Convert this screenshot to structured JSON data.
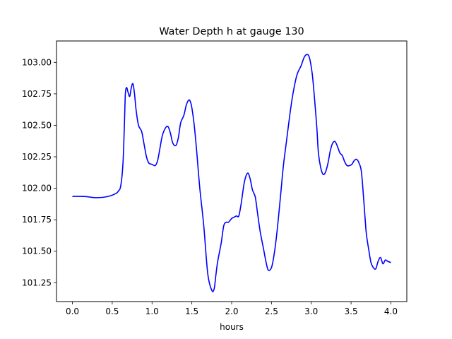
{
  "chart_data": {
    "type": "line",
    "title": "Water Depth h at gauge 130",
    "xlabel": "hours",
    "ylabel": "",
    "xlim": [
      -0.2,
      4.2
    ],
    "ylim": [
      101.1,
      103.17
    ],
    "xticks": [
      0.0,
      0.5,
      1.0,
      1.5,
      2.0,
      2.5,
      3.0,
      3.5,
      4.0
    ],
    "xtick_labels": [
      "0.0",
      "0.5",
      "1.0",
      "1.5",
      "2.0",
      "2.5",
      "3.0",
      "3.5",
      "4.0"
    ],
    "yticks": [
      101.25,
      101.5,
      101.75,
      102.0,
      102.25,
      102.5,
      102.75,
      103.0
    ],
    "ytick_labels": [
      "101.25",
      "101.50",
      "101.75",
      "102.00",
      "102.25",
      "102.50",
      "102.75",
      "103.00"
    ],
    "grid": false,
    "series": [
      {
        "color": "#0000ff",
        "x": [
          0.0,
          0.15,
          0.3,
          0.45,
          0.55,
          0.58,
          0.6,
          0.62,
          0.635,
          0.645,
          0.655,
          0.665,
          0.68,
          0.7,
          0.72,
          0.74,
          0.76,
          0.78,
          0.8,
          0.83,
          0.87,
          0.9,
          0.93,
          0.96,
          1.0,
          1.04,
          1.07,
          1.1,
          1.13,
          1.17,
          1.2,
          1.23,
          1.26,
          1.3,
          1.33,
          1.36,
          1.4,
          1.43,
          1.46,
          1.48,
          1.5,
          1.53,
          1.56,
          1.6,
          1.65,
          1.7,
          1.75,
          1.78,
          1.8,
          1.82,
          1.84,
          1.87,
          1.9,
          1.93,
          1.96,
          2.0,
          2.03,
          2.06,
          2.09,
          2.12,
          2.16,
          2.2,
          2.23,
          2.26,
          2.28,
          2.3,
          2.33,
          2.36,
          2.4,
          2.43,
          2.46,
          2.5,
          2.53,
          2.56,
          2.59,
          2.62,
          2.65,
          2.69,
          2.73,
          2.77,
          2.82,
          2.87,
          2.92,
          2.97,
          3.01,
          3.04,
          3.07,
          3.09,
          3.12,
          3.15,
          3.18,
          3.21,
          3.24,
          3.27,
          3.3,
          3.33,
          3.36,
          3.39,
          3.42,
          3.45,
          3.48,
          3.51,
          3.54,
          3.57,
          3.6,
          3.63,
          3.66,
          3.69,
          3.72,
          3.75,
          3.78,
          3.81,
          3.84,
          3.87,
          3.9,
          3.93,
          3.96,
          4.0
        ],
        "y": [
          101.935,
          101.935,
          101.925,
          101.935,
          101.96,
          101.98,
          102.0,
          102.08,
          102.2,
          102.35,
          102.55,
          102.75,
          102.8,
          102.76,
          102.73,
          102.8,
          102.83,
          102.75,
          102.62,
          102.5,
          102.45,
          102.35,
          102.25,
          102.2,
          102.19,
          102.18,
          102.22,
          102.32,
          102.42,
          102.48,
          102.49,
          102.44,
          102.36,
          102.34,
          102.4,
          102.52,
          102.58,
          102.66,
          102.7,
          102.69,
          102.64,
          102.5,
          102.3,
          102.0,
          101.7,
          101.32,
          101.19,
          101.2,
          101.3,
          101.4,
          101.47,
          101.57,
          101.7,
          101.73,
          101.73,
          101.76,
          101.77,
          101.78,
          101.78,
          101.88,
          102.05,
          102.12,
          102.08,
          101.99,
          101.96,
          101.92,
          101.78,
          101.65,
          101.52,
          101.42,
          101.35,
          101.37,
          101.46,
          101.6,
          101.78,
          101.98,
          102.18,
          102.38,
          102.58,
          102.75,
          102.9,
          102.97,
          103.05,
          103.05,
          102.92,
          102.72,
          102.48,
          102.28,
          102.16,
          102.11,
          102.13,
          102.2,
          102.3,
          102.36,
          102.37,
          102.33,
          102.28,
          102.26,
          102.21,
          102.18,
          102.18,
          102.19,
          102.22,
          102.23,
          102.2,
          102.13,
          101.9,
          101.65,
          101.52,
          101.41,
          101.37,
          101.36,
          101.42,
          101.45,
          101.4,
          101.43,
          101.42,
          101.41
        ]
      }
    ]
  }
}
